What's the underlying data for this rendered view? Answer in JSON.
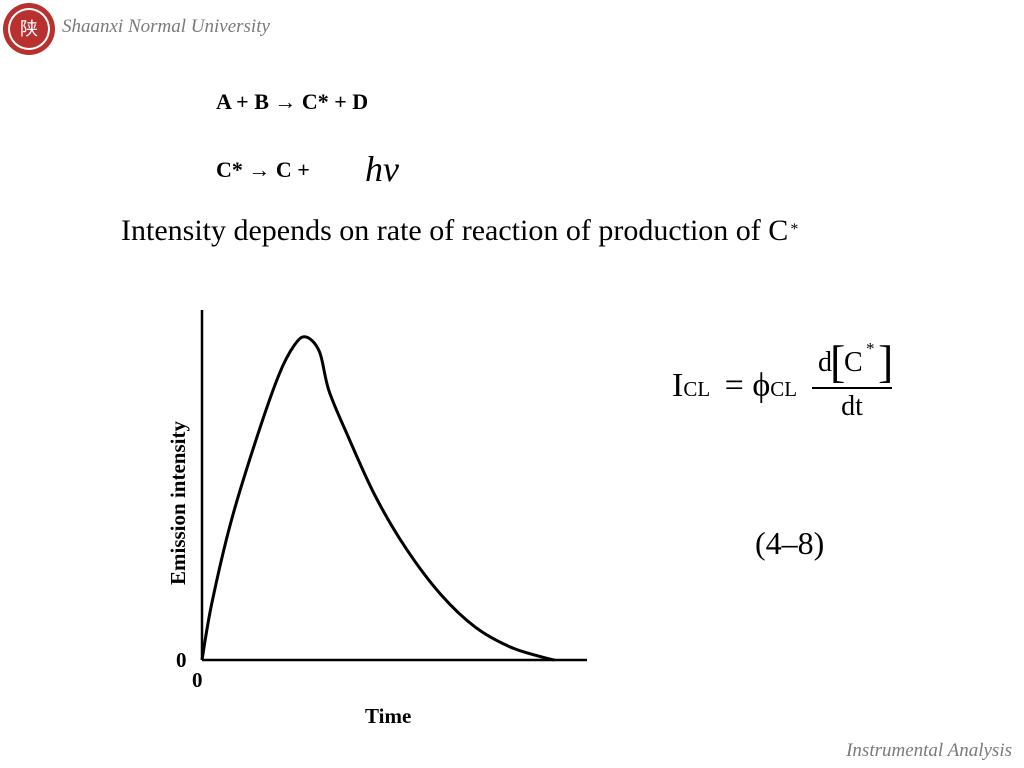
{
  "header": {
    "university": "Shaanxi Normal University"
  },
  "footer": {
    "course": "Instrumental Analysis"
  },
  "equations": {
    "line1": "A + B → C* + D",
    "line2": "C* → C +",
    "h": "h",
    "nu": "ν"
  },
  "statement": {
    "text": "Intensity depends on rate of reaction of production of C",
    "sup": "*"
  },
  "chart_data": {
    "type": "line",
    "title": "",
    "xlabel": "Time",
    "ylabel": "Emission intensity",
    "x_ticks": [
      "0"
    ],
    "y_ticks": [
      "0"
    ],
    "xlim": [
      0,
      1
    ],
    "ylim": [
      0,
      1
    ],
    "series": [
      {
        "x": [
          0,
          0.025,
          0.075,
          0.14,
          0.2,
          0.24,
          0.27,
          0.305,
          0.33,
          0.38,
          0.45,
          0.53,
          0.62,
          0.71,
          0.8,
          0.88,
          0.915
        ],
        "y": [
          0,
          0.17,
          0.42,
          0.67,
          0.87,
          0.96,
          0.985,
          0.94,
          0.82,
          0.68,
          0.5,
          0.34,
          0.2,
          0.1,
          0.04,
          0.01,
          0
        ]
      }
    ]
  },
  "formula": {
    "I": "I",
    "I_sub": "CL",
    "equals": "=",
    "phi": "ϕ",
    "phi_sub": "CL",
    "num_d": "d",
    "num_C": "C",
    "num_star": "*",
    "den": "dt"
  },
  "equation_number": "(4–8)"
}
